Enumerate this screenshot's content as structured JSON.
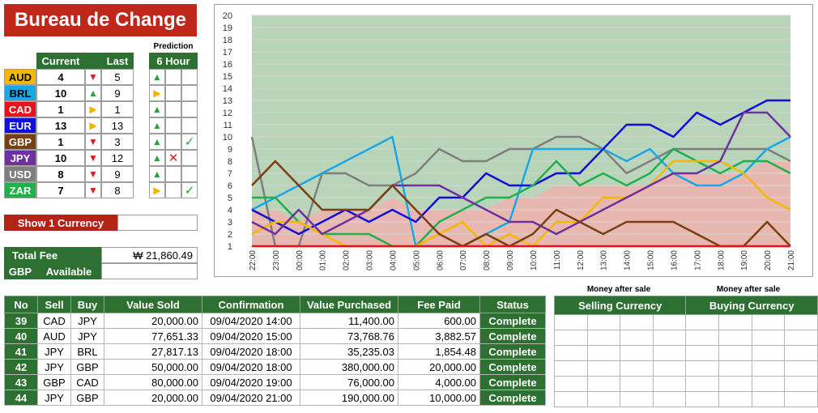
{
  "title": "Bureau de Change",
  "prediction_label": "Prediction",
  "headers": {
    "current": "Current",
    "last": "Last",
    "six_hour": "6 Hour"
  },
  "colors": {
    "up": "#2e9e3f",
    "down": "#d42020",
    "flat": "#f0b400",
    "cross": "#d42020",
    "check": "#2e9e3f"
  },
  "currencies": [
    {
      "code": "AUD",
      "bg": "#f5b800",
      "fg": "#000000",
      "current": "4",
      "trend": "down",
      "last": "5",
      "pred": "up",
      "mark": ""
    },
    {
      "code": "BRL",
      "bg": "#1aa7e6",
      "fg": "#000000",
      "current": "10",
      "trend": "up",
      "last": "9",
      "pred": "flat",
      "mark": ""
    },
    {
      "code": "CAD",
      "bg": "#e8131a",
      "fg": "#ffffff",
      "current": "1",
      "trend": "flat",
      "last": "1",
      "pred": "up",
      "mark": ""
    },
    {
      "code": "EUR",
      "bg": "#1010d8",
      "fg": "#ffffff",
      "current": "13",
      "trend": "flat",
      "last": "13",
      "pred": "up",
      "mark": ""
    },
    {
      "code": "GBP",
      "bg": "#7b3f12",
      "fg": "#ffffff",
      "current": "1",
      "trend": "down",
      "last": "3",
      "pred": "up",
      "mark": "check"
    },
    {
      "code": "JPY",
      "bg": "#7030a0",
      "fg": "#ffffff",
      "current": "10",
      "trend": "down",
      "last": "12",
      "pred": "up",
      "mark": "cross"
    },
    {
      "code": "USD",
      "bg": "#7f7f7f",
      "fg": "#ffffff",
      "current": "8",
      "trend": "down",
      "last": "9",
      "pred": "up",
      "mark": ""
    },
    {
      "code": "ZAR",
      "bg": "#22b04b",
      "fg": "#ffffff",
      "current": "7",
      "trend": "down",
      "last": "8",
      "pred": "flat",
      "mark": "check"
    }
  ],
  "show_currency_label": "Show 1 Currency",
  "total_fee_label": "Total Fee",
  "total_fee_value": "₩ 21,860.49",
  "gbp_label": "GBP",
  "available_label": "Available",
  "money_after_sale_1": "Money after sale",
  "money_after_sale_2": "Money after sale",
  "table": {
    "columns": [
      "No",
      "Sell",
      "Buy",
      "Value Sold",
      "Confirmation",
      "Value Purchased",
      "Fee Paid",
      "Status"
    ],
    "rows": [
      {
        "no": "39",
        "sell": "CAD",
        "buy": "JPY",
        "value_sold": "20,000.00",
        "confirmation": "09/04/2020 14:00",
        "value_purchased": "11,400.00",
        "fee": "600.00",
        "status": "Complete"
      },
      {
        "no": "40",
        "sell": "AUD",
        "buy": "JPY",
        "value_sold": "77,651.33",
        "confirmation": "09/04/2020 15:00",
        "value_purchased": "73,768.76",
        "fee": "3,882.57",
        "status": "Complete"
      },
      {
        "no": "41",
        "sell": "JPY",
        "buy": "BRL",
        "value_sold": "27,817.13",
        "confirmation": "09/04/2020 18:00",
        "value_purchased": "35,235.03",
        "fee": "1,854.48",
        "status": "Complete"
      },
      {
        "no": "42",
        "sell": "JPY",
        "buy": "GBP",
        "value_sold": "50,000.00",
        "confirmation": "09/04/2020 18:00",
        "value_purchased": "380,000.00",
        "fee": "20,000.00",
        "status": "Complete"
      },
      {
        "no": "43",
        "sell": "GBP",
        "buy": "CAD",
        "value_sold": "80,000.00",
        "confirmation": "09/04/2020 19:00",
        "value_purchased": "76,000.00",
        "fee": "4,000.00",
        "status": "Complete"
      },
      {
        "no": "44",
        "sell": "JPY",
        "buy": "GBP",
        "value_sold": "20,000.00",
        "confirmation": "09/04/2020 21:00",
        "value_purchased": "190,000.00",
        "fee": "10,000.00",
        "status": "Complete"
      }
    ]
  },
  "side_table": {
    "columns": [
      "Selling Currency",
      "Buying Currency"
    ]
  },
  "chart_data": {
    "type": "line",
    "x": [
      "22:00",
      "23:00",
      "00:00",
      "01:00",
      "02:00",
      "03:00",
      "04:00",
      "05:00",
      "06:00",
      "07:00",
      "08:00",
      "09:00",
      "10:00",
      "11:00",
      "12:00",
      "13:00",
      "14:00",
      "15:00",
      "16:00",
      "17:00",
      "18:00",
      "19:00",
      "20:00",
      "21:00"
    ],
    "ylim": [
      1,
      20
    ],
    "yticks": [
      "1",
      "2",
      "3",
      "4",
      "5",
      "6",
      "7",
      "8",
      "9",
      "10",
      "11",
      "12",
      "13",
      "14",
      "15",
      "16",
      "17",
      "18",
      "19",
      "20"
    ],
    "grid": true,
    "areas": [
      {
        "color": "#b8d4b9",
        "values": [
          20,
          20,
          20,
          20,
          20,
          20,
          20,
          20,
          20,
          20,
          20,
          20,
          20,
          20,
          20,
          20,
          20,
          20,
          20,
          20,
          20,
          20,
          20,
          20
        ]
      },
      {
        "color": "#e8b7b0",
        "values": [
          4,
          4,
          3,
          4,
          4,
          4,
          5,
          4,
          4,
          4,
          4,
          5,
          5,
          6,
          6,
          6,
          6,
          6,
          7,
          7,
          7,
          7,
          8,
          8
        ]
      }
    ],
    "series": [
      {
        "color": "#7f7f7f",
        "values": [
          10,
          1,
          1,
          7,
          7,
          6,
          6,
          7,
          9,
          8,
          8,
          9,
          9,
          10,
          10,
          9,
          7,
          8,
          9,
          9,
          9,
          9,
          9,
          8
        ]
      },
      {
        "color": "#1aa7e6",
        "values": [
          4,
          5,
          6,
          7,
          8,
          9,
          10,
          1,
          1,
          1,
          2,
          3,
          9,
          9,
          9,
          9,
          8,
          9,
          7,
          6,
          6,
          7,
          9,
          10
        ]
      },
      {
        "color": "#1010d8",
        "values": [
          4,
          3,
          2,
          3,
          4,
          3,
          4,
          3,
          5,
          5,
          7,
          6,
          6,
          7,
          7,
          9,
          11,
          11,
          10,
          12,
          11,
          12,
          13,
          13
        ]
      },
      {
        "color": "#22b04b",
        "values": [
          5,
          5,
          3,
          2,
          2,
          2,
          1,
          1,
          3,
          4,
          5,
          5,
          6,
          8,
          6,
          7,
          6,
          7,
          9,
          8,
          7,
          8,
          8,
          7
        ]
      },
      {
        "color": "#f5b800",
        "values": [
          2,
          3,
          3,
          2,
          1,
          1,
          1,
          1,
          2,
          3,
          1,
          2,
          1,
          3,
          3,
          5,
          5,
          6,
          8,
          8,
          8,
          7,
          5,
          4
        ]
      },
      {
        "color": "#7030a0",
        "values": [
          3,
          2,
          4,
          2,
          3,
          4,
          6,
          6,
          6,
          5,
          4,
          3,
          3,
          2,
          3,
          4,
          5,
          6,
          7,
          7,
          8,
          12,
          12,
          10
        ]
      },
      {
        "color": "#7b3f12",
        "values": [
          6,
          8,
          6,
          4,
          4,
          4,
          6,
          4,
          2,
          1,
          2,
          1,
          2,
          4,
          3,
          2,
          3,
          3,
          3,
          2,
          1,
          1,
          3,
          1
        ]
      },
      {
        "color": "#e8131a",
        "values": [
          1,
          1,
          1,
          1,
          1,
          1,
          1,
          1,
          1,
          1,
          1,
          1,
          1,
          1,
          1,
          1,
          1,
          1,
          1,
          1,
          1,
          1,
          1,
          1
        ]
      }
    ]
  }
}
